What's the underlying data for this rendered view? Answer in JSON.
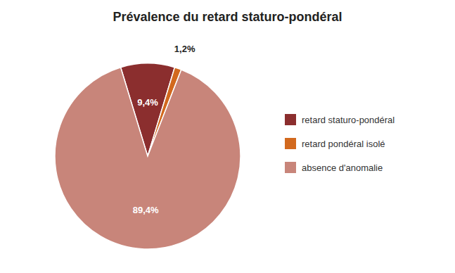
{
  "chart_data": {
    "type": "pie",
    "title": "Prévalence du retard staturo-pondéral",
    "categories": [
      "retard staturo-pondéral",
      "retard pondéral isolé",
      "absence d'anomalie"
    ],
    "values": [
      9.4,
      1.2,
      89.4
    ],
    "value_labels": [
      "9,4%",
      "1,2%",
      "89,4%"
    ],
    "colors": [
      "#8B2E2E",
      "#D2691E",
      "#C8857A"
    ],
    "data_labels": true,
    "legend": "right"
  }
}
